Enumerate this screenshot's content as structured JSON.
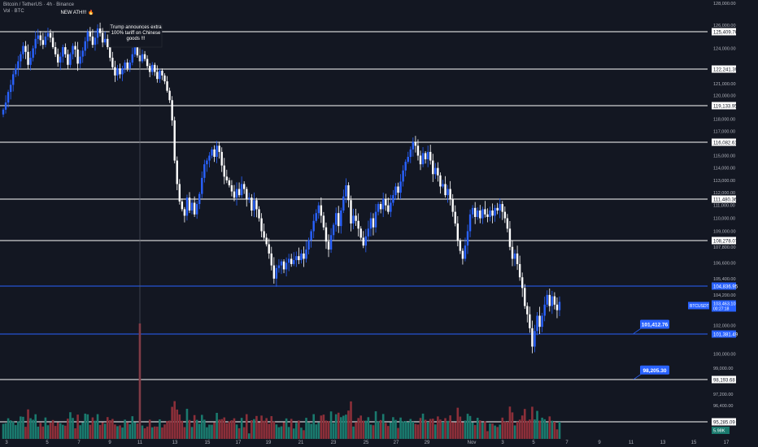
{
  "header": {
    "symbol_title": "Bitcoin / TetherUS · 4h · Binance",
    "volume_label": "Vol · BTC"
  },
  "annotations": {
    "ath": "NEW ATH!!! 🔥",
    "tariff": [
      "Trump announces extra",
      "100% tariff on Chinese",
      "goods !!!"
    ]
  },
  "colors": {
    "background": "#131722",
    "bull": "#2962ff",
    "bear": "#ffffff",
    "vol_up": "#1a7a6e",
    "vol_down": "#8c2f39",
    "white_line": "#ffffff",
    "blue_line": "#2962ff",
    "axis_text": "#b2b5be"
  },
  "chart_data": {
    "type": "candlestick",
    "title": "Bitcoin / TetherUS · 4h · Binance",
    "ylim": [
      94000,
      128000
    ],
    "y_ticks": [
      "128,000.00",
      "126,000.00",
      "124,000.00",
      "122,000.00",
      "121,000.00",
      "120,000.00",
      "118,000.00",
      "117,000.00",
      "116,000.00",
      "115,000.00",
      "114,000.00",
      "113,000.00",
      "112,000.00",
      "111,000.00",
      "110,000.00",
      "109,000.00",
      "107,800.00",
      "106,600.00",
      "105,400.00",
      "104,200.00",
      "102,000.00",
      "101,000.00",
      "100,000.00",
      "99,000.00",
      "97,200.00",
      "96,400.00",
      "95,600.00"
    ],
    "x_ticks": [
      "3",
      "5",
      "7",
      "9",
      "11",
      "13",
      "15",
      "17",
      "19",
      "21",
      "23",
      "25",
      "27",
      "29",
      "Nov",
      "3",
      "5",
      "7",
      "9",
      "11",
      "13",
      "15",
      "17"
    ],
    "white_levels": [
      {
        "value": 125409.76,
        "label": "125,409.76"
      },
      {
        "value": 122241.39,
        "label": "122,241.39"
      },
      {
        "value": 119133.95,
        "label": "119,133.95"
      },
      {
        "value": 116082.61,
        "label": "116,082.61"
      },
      {
        "value": 111480.36,
        "label": "111,480.36"
      },
      {
        "value": 108278.07,
        "label": "108,278.07"
      },
      {
        "value": 98193.68,
        "label": "98,193.68"
      },
      {
        "value": 95285.09,
        "label": "95,285.09"
      }
    ],
    "blue_levels": [
      {
        "value": 104836.95,
        "label": "104,836.95"
      },
      {
        "value": 101381.49,
        "label": "101,381.49"
      }
    ],
    "callouts": [
      {
        "value": 101412.76,
        "label": "101,412.76"
      },
      {
        "value": 98205.3,
        "label": "98,205.30"
      }
    ],
    "current_price": {
      "symbol": "BTCUSDT",
      "value": 103463.1,
      "label": "103,463.10",
      "countdown": "00:27:18"
    },
    "volume_label": "5.98K",
    "candles_close": [
      118800,
      119400,
      120300,
      120900,
      121800,
      122300,
      122900,
      123500,
      124200,
      123700,
      122600,
      123200,
      124000,
      124800,
      125100,
      124700,
      124300,
      125000,
      125300,
      124900,
      124100,
      123500,
      122800,
      123300,
      124100,
      123500,
      122600,
      123500,
      124200,
      123900,
      122700,
      123300,
      123800,
      124600,
      125400,
      125000,
      124300,
      124900,
      125700,
      125300,
      124500,
      124800,
      124100,
      123200,
      122400,
      121700,
      122300,
      121800,
      122300,
      122800,
      122300,
      122800,
      123500,
      124100,
      123400,
      122900,
      123500,
      123100,
      122500,
      122000,
      122600,
      122000,
      121400,
      122100,
      121700,
      121200,
      120400,
      119600,
      117900,
      114600,
      112700,
      111300,
      110700,
      110200,
      111600,
      110600,
      111200,
      110300,
      111100,
      111900,
      113200,
      114300,
      114600,
      115000,
      115500,
      114900,
      115800,
      115300,
      114200,
      113300,
      113000,
      112600,
      112100,
      111600,
      112300,
      111800,
      112700,
      112300,
      111500,
      111600,
      110600,
      111400,
      110700,
      110000,
      109000,
      108500,
      108000,
      107300,
      106400,
      105400,
      106200,
      106400,
      106700,
      106100,
      106600,
      106900,
      106500,
      106800,
      107100,
      106800,
      107300,
      106900,
      107600,
      108300,
      109000,
      109800,
      110400,
      111000,
      110200,
      109300,
      108200,
      107600,
      108700,
      109500,
      110400,
      109400,
      110600,
      111700,
      112600,
      111400,
      109600,
      110200,
      109800,
      109200,
      108500,
      107900,
      108600,
      109200,
      110000,
      109300,
      110500,
      111100,
      110700,
      111500,
      111000,
      110500,
      111200,
      111800,
      112500,
      112000,
      112900,
      113800,
      114500,
      114900,
      115500,
      116100,
      115800,
      115000,
      114300,
      115200,
      114700,
      115300,
      114600,
      113500,
      114000,
      113400,
      112500,
      112700,
      111800,
      112300,
      111500,
      110500,
      109600,
      108300,
      107500,
      106900,
      107900,
      109000,
      110300,
      110800,
      110100,
      110600,
      110000,
      110700,
      110300,
      110100,
      110600,
      110200,
      110800,
      110600,
      111100,
      110500,
      110000,
      109200,
      107800,
      106900,
      107300,
      106500,
      105500,
      104700,
      103400,
      102800,
      101800,
      100500,
      101600,
      102700,
      101900,
      102700,
      103500,
      104200,
      103400,
      104100,
      103500,
      103100,
      103700
    ]
  }
}
